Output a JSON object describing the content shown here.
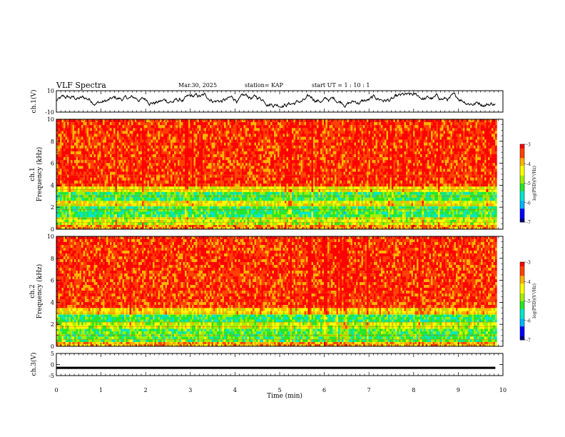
{
  "header": {
    "title": "VLF Spectra",
    "date": "Mar.30, 2025",
    "station": "station= KAP",
    "start": "start  UT =   1 : 10 : 1"
  },
  "chart_data": [
    {
      "type": "line",
      "panel": "ch1-waveform",
      "ylabel": "ch.1(V)",
      "ylim": [
        -10,
        10
      ],
      "yticks": [
        "10",
        "-10"
      ],
      "xlim": [
        0,
        10
      ],
      "x_end": 9.83,
      "series": [
        {
          "color": "#000000",
          "note_values_approx": [
            -4,
            6
          ]
        }
      ]
    },
    {
      "type": "heatmap",
      "panel": "ch1-spectrogram",
      "ylabel": "ch.1\nFrequency (kHz)",
      "ylim": [
        0,
        10
      ],
      "yticks": [
        "0",
        "2",
        "4",
        "6",
        "8",
        "10"
      ],
      "xlim": [
        0,
        10
      ],
      "x_end": 9.83,
      "bands": [
        {
          "from": 0.0,
          "to": 0.4,
          "level": -3.8
        },
        {
          "from": 0.4,
          "to": 1.1,
          "level": -4.6
        },
        {
          "from": 1.1,
          "to": 2.1,
          "level": -5.3
        },
        {
          "from": 2.1,
          "to": 2.6,
          "level": -4.4
        },
        {
          "from": 2.6,
          "to": 3.4,
          "level": -5.2
        },
        {
          "from": 3.4,
          "to": 3.9,
          "level": -4.3
        },
        {
          "from": 3.9,
          "to": 10.0,
          "level": -3.3
        }
      ],
      "colorbar": {
        "label": "log(PSD)(V²/Hz)",
        "range": [
          -7,
          -3
        ],
        "ticks": [
          "-3",
          "-4",
          "-5",
          "-6",
          "-7"
        ]
      }
    },
    {
      "type": "heatmap",
      "panel": "ch2-spectrogram",
      "ylabel": "ch.2\nFrequency (kHz)",
      "ylim": [
        0,
        10
      ],
      "yticks": [
        "0",
        "2",
        "4",
        "6",
        "8",
        "10"
      ],
      "xlim": [
        0,
        10
      ],
      "x_end": 9.83,
      "bands": [
        {
          "from": 0.0,
          "to": 0.4,
          "level": -3.9
        },
        {
          "from": 0.4,
          "to": 1.6,
          "level": -5.1
        },
        {
          "from": 1.6,
          "to": 2.2,
          "level": -4.6
        },
        {
          "from": 2.2,
          "to": 2.9,
          "level": -5.3
        },
        {
          "from": 2.9,
          "to": 3.5,
          "level": -4.1
        },
        {
          "from": 3.5,
          "to": 10.0,
          "level": -3.3
        }
      ],
      "colorbar": {
        "label": "log(PSD)(V²/Hz)",
        "range": [
          -7,
          -3
        ],
        "ticks": [
          "-3",
          "-4",
          "-5",
          "-6",
          "-7"
        ]
      }
    },
    {
      "type": "line",
      "panel": "ch3-waveform",
      "ylabel": "ch.3(V)",
      "ylim": [
        -5,
        5
      ],
      "yticks": [
        "5",
        "0",
        "-5"
      ],
      "xlim": [
        0,
        10
      ],
      "x_end": 9.83,
      "series": [
        {
          "color": "#000000",
          "note_values_approx": [
            -2,
            -1
          ]
        }
      ],
      "xlabel": "Time  (min)",
      "xticks": [
        "0",
        "1",
        "2",
        "3",
        "4",
        "5",
        "6",
        "7",
        "8",
        "9",
        "10"
      ]
    }
  ],
  "colormap": [
    "#000080",
    "#0000ff",
    "#00b4ff",
    "#00e6c8",
    "#28e628",
    "#a0f000",
    "#ffff00",
    "#ffb400",
    "#ff4000",
    "#ff0000",
    "#ffffff"
  ]
}
